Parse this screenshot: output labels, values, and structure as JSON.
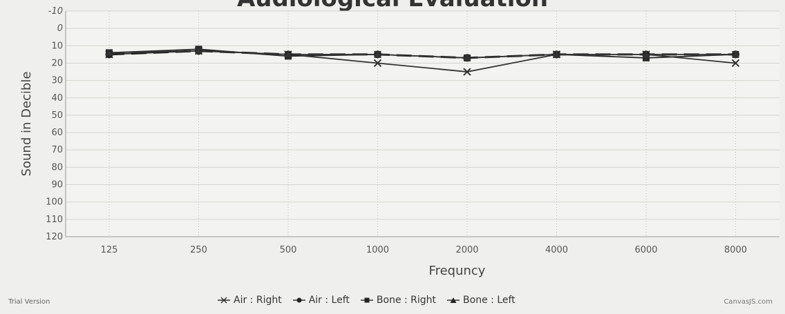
{
  "chart_data": {
    "type": "line",
    "title": "Audiological Evaluation",
    "xlabel": "Frequncy",
    "ylabel": "Sound in Decible",
    "categories": [
      "125",
      "250",
      "500",
      "1000",
      "2000",
      "4000",
      "6000",
      "8000"
    ],
    "y_ticks": [
      "-10",
      "0",
      "10",
      "20",
      "30",
      "40",
      "50",
      "60",
      "70",
      "80",
      "90",
      "100",
      "110",
      "120"
    ],
    "y_tick_values": [
      -10,
      0,
      10,
      20,
      30,
      40,
      50,
      60,
      70,
      80,
      90,
      100,
      110,
      120
    ],
    "y_axis_reversed": true,
    "grid": true,
    "legend_position": "bottom-center",
    "series": [
      {
        "name": "Air : Right",
        "marker": "cross",
        "line": "solid",
        "color": "#333333",
        "values": [
          15,
          13,
          15,
          20,
          25,
          15,
          15,
          20
        ]
      },
      {
        "name": "Air : Left",
        "marker": "circle",
        "line": "dashed",
        "color": "#222222",
        "values": [
          15,
          13,
          15,
          15,
          17,
          15,
          15,
          15
        ]
      },
      {
        "name": "Bone : Right",
        "marker": "square",
        "line": "solid",
        "color": "#2a2a2a",
        "values": [
          14,
          12,
          16,
          15,
          17,
          15,
          17,
          15
        ]
      },
      {
        "name": "Bone : Left",
        "marker": "triangle",
        "line": "solid",
        "color": "#333333",
        "values": [
          14,
          13,
          15,
          15,
          17,
          15,
          15,
          15
        ]
      }
    ]
  },
  "footer": {
    "left": "Trial Version",
    "right": "CanvasJS.com"
  }
}
